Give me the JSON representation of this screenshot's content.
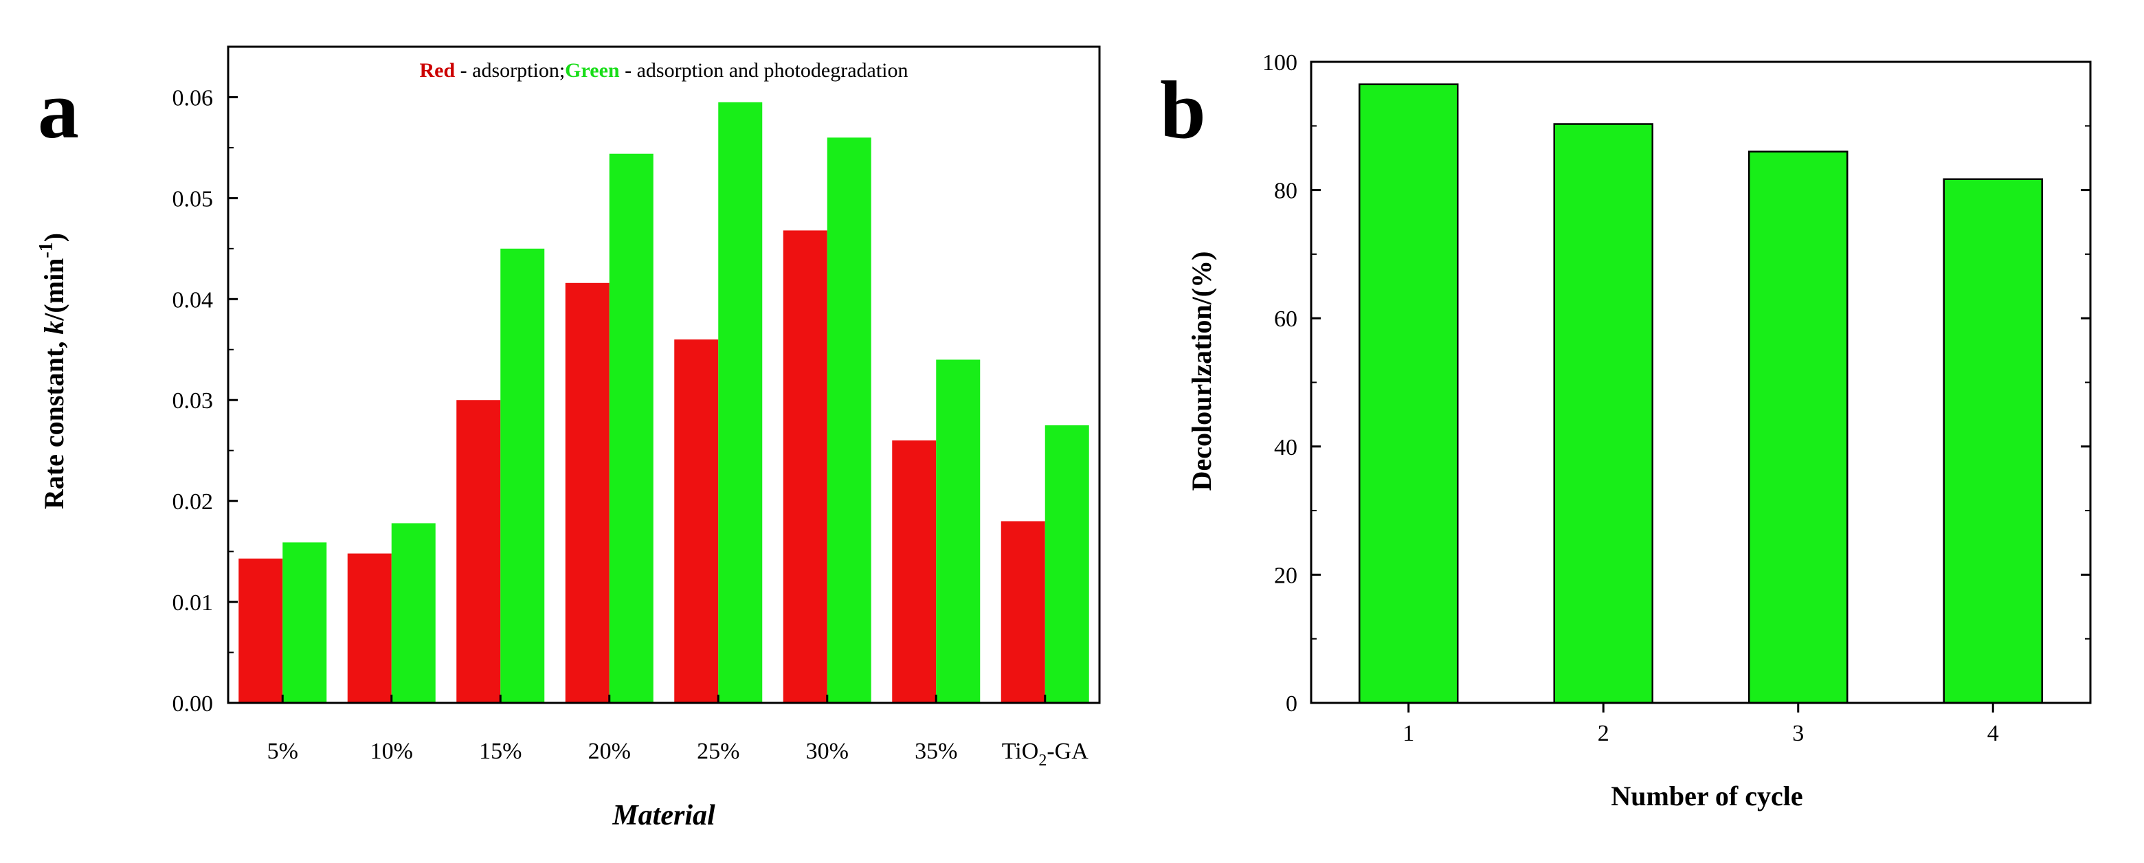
{
  "colors": {
    "series_a": "#ee1111",
    "series_b": "#18ee18",
    "legend_red": "#cc0000",
    "legend_green": "#18dd18",
    "frame": "#000000"
  },
  "chart_data": [
    {
      "panel": "a",
      "type": "bar",
      "title": "",
      "xlabel": "Material",
      "ylabel_parts": [
        "Rate constant, ",
        "k",
        "/(min",
        "-1",
        ")"
      ],
      "categories": [
        "5%",
        "10%",
        "15%",
        "20%",
        "25%",
        "30%",
        "35%",
        "TiO2-GA"
      ],
      "category_labels": [
        {
          "main": "5%"
        },
        {
          "main": "10%"
        },
        {
          "main": "15%"
        },
        {
          "main": "20%"
        },
        {
          "main": "25%"
        },
        {
          "main": "30%"
        },
        {
          "main": "35%"
        },
        {
          "main": "TiO",
          "sub": "2",
          "suffix": "-GA"
        }
      ],
      "series": [
        {
          "name": "Red - adsorption",
          "color": "#ee1111",
          "values": [
            0.0143,
            0.0148,
            0.03,
            0.0416,
            0.036,
            0.0468,
            0.026,
            0.018
          ]
        },
        {
          "name": "Green - adsorption and photodegradation",
          "color": "#18ee18",
          "values": [
            0.0159,
            0.0178,
            0.045,
            0.0544,
            0.0595,
            0.056,
            0.034,
            0.0275
          ]
        }
      ],
      "ylim": [
        0,
        0.065
      ],
      "yticks": [
        0.0,
        0.01,
        0.02,
        0.03,
        0.04,
        0.05,
        0.06
      ],
      "ytick_labels": [
        "0.00",
        "0.01",
        "0.02",
        "0.03",
        "0.04",
        "0.05",
        "0.06"
      ],
      "legend": {
        "position": "top",
        "entries": [
          {
            "key": "Red",
            "text": " - adsorption;",
            "color": "#cc0000"
          },
          {
            "key": "Green",
            "text": " - adsorption and photodegradation",
            "color": "#18dd18"
          }
        ]
      }
    },
    {
      "panel": "b",
      "type": "bar",
      "title": "",
      "xlabel": "Number of cycle",
      "ylabel": "Decolourlzation/(%)",
      "categories": [
        "1",
        "2",
        "3",
        "4"
      ],
      "series": [
        {
          "name": "Decolourlzation",
          "color": "#18ee18",
          "values": [
            96.5,
            90.3,
            86.0,
            81.7
          ]
        }
      ],
      "ylim": [
        0,
        100
      ],
      "yticks": [
        0,
        20,
        40,
        60,
        80,
        100
      ],
      "ytick_labels": [
        "0",
        "20",
        "40",
        "60",
        "80",
        "100"
      ]
    }
  ]
}
